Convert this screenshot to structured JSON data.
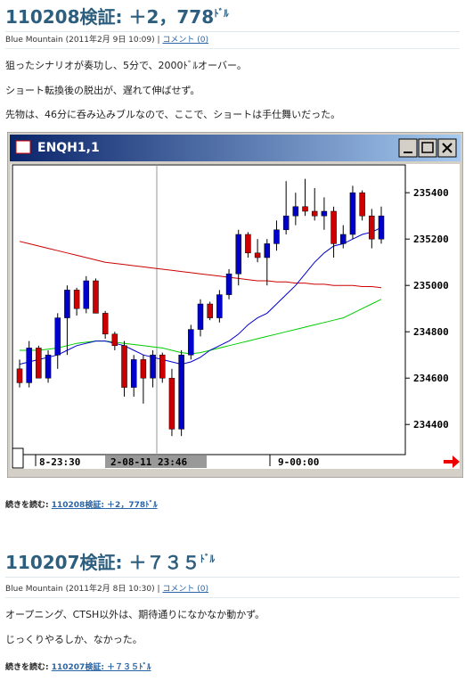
{
  "posts": [
    {
      "title": "110208検証: ＋2，778",
      "title_unit": "ﾄﾞﾙ",
      "author": "Blue Mountain",
      "date": "(2011年2月 9日 10:09)",
      "comment_link": "コメント (0)",
      "paragraphs": [
        "狙ったシナリオが奏功し、5分で、2000ﾄﾞﾙオーバー。",
        "ショート転換後の脱出が、遅れて伸ばせず。",
        "先物は、46分に呑み込みブルなので、ここで、ショートは手仕舞いだった。"
      ],
      "read_more_label": "続きを読む:",
      "read_more_link": "110208検証: ＋2，778ﾄﾞﾙ",
      "chart": {
        "type": "candlestick",
        "window_title": "ENQH1,1",
        "ylim": [
          234270,
          235520
        ],
        "yticks": [
          234400,
          234600,
          234800,
          235000,
          235200,
          235400
        ],
        "time_labels": [
          "8-23:30",
          "2-08-11 23:46",
          "9-00:00"
        ],
        "up_color": "#0000cc",
        "down_color": "#cc0000",
        "open": [
          234640,
          234580,
          234730,
          234600,
          234700,
          234860,
          234980,
          234900,
          235020,
          234880,
          234790,
          234740,
          234560,
          234680,
          234600,
          234700,
          234600,
          234380,
          234700,
          234810,
          234920,
          234860,
          234960,
          235050,
          235220,
          235140,
          235120,
          235180,
          235240,
          235300,
          235340,
          235320,
          235300,
          235320,
          235180,
          235220,
          235400,
          235300,
          235200
        ],
        "high": [
          234680,
          234760,
          234740,
          234720,
          234880,
          235000,
          234990,
          235040,
          235030,
          234890,
          234800,
          234760,
          234700,
          234700,
          234720,
          234710,
          234640,
          234720,
          234830,
          234940,
          234930,
          234980,
          235070,
          235240,
          235230,
          235200,
          235200,
          235280,
          235450,
          235400,
          235460,
          235420,
          235380,
          235340,
          235260,
          235430,
          235410,
          235330,
          235340
        ],
        "low": [
          234560,
          234560,
          234600,
          234580,
          234640,
          234700,
          234870,
          234880,
          234880,
          234770,
          234720,
          234520,
          234520,
          234490,
          234560,
          234580,
          234350,
          234350,
          234680,
          234780,
          234850,
          234840,
          234940,
          235000,
          235120,
          235100,
          235000,
          235150,
          235220,
          235260,
          235300,
          235280,
          235240,
          235120,
          235160,
          235200,
          235280,
          235160,
          235180
        ],
        "close": [
          234580,
          234730,
          234600,
          234700,
          234860,
          234980,
          234900,
          235020,
          234880,
          234790,
          234740,
          234560,
          234680,
          234600,
          234700,
          234600,
          234380,
          234700,
          234810,
          234920,
          234860,
          234960,
          235050,
          235220,
          235140,
          235120,
          235180,
          235240,
          235300,
          235340,
          235320,
          235300,
          235320,
          235180,
          235220,
          235400,
          235300,
          235200,
          235300
        ],
        "moving_averages": [
          {
            "color": "#cc0000",
            "values": [
              235190,
              235180,
              235170,
              235160,
              235150,
              235140,
              235130,
              235120,
              235110,
              235100,
              235095,
              235090,
              235085,
              235080,
              235075,
              235070,
              235065,
              235060,
              235055,
              235050,
              235045,
              235040,
              235035,
              235030,
              235025,
              235020,
              235020,
              235015,
              235015,
              235010,
              235010,
              235005,
              235005,
              235000,
              235000,
              235000,
              234995,
              234995,
              234990
            ]
          },
          {
            "color": "#00cc00",
            "values": [
              234720,
              234720,
              234720,
              234725,
              234730,
              234740,
              234750,
              234755,
              234760,
              234760,
              234755,
              234750,
              234745,
              234740,
              234735,
              234730,
              234720,
              234710,
              234705,
              234710,
              234720,
              234730,
              234740,
              234750,
              234760,
              234770,
              234780,
              234790,
              234800,
              234810,
              234820,
              234830,
              234840,
              234850,
              234860,
              234880,
              234900,
              234920,
              234940
            ]
          },
          {
            "color": "#0000cc",
            "values": [
              234660,
              234670,
              234680,
              234690,
              234700,
              234720,
              234740,
              234750,
              234760,
              234760,
              234750,
              234740,
              234720,
              234700,
              234690,
              234680,
              234670,
              234660,
              234670,
              234690,
              234720,
              234740,
              234760,
              234790,
              234830,
              234860,
              234880,
              234920,
              234960,
              235000,
              235050,
              235100,
              235140,
              235170,
              235180,
              235200,
              235220,
              235230,
              235250
            ]
          }
        ]
      }
    },
    {
      "title": "110207検証: ＋７３５",
      "title_unit": "ﾄﾞﾙ",
      "author": "Blue Mountain",
      "date": "(2011年2月 8日 10:30)",
      "comment_link": "コメント (0)",
      "paragraphs": [
        "オープニング、CTSH以外は、期待通りになかなか動かず。",
        "じっくりやるしか、なかった。"
      ],
      "read_more_label": "続きを読む:",
      "read_more_link": "110207検証: ＋７３５ﾄﾞﾙ"
    }
  ]
}
